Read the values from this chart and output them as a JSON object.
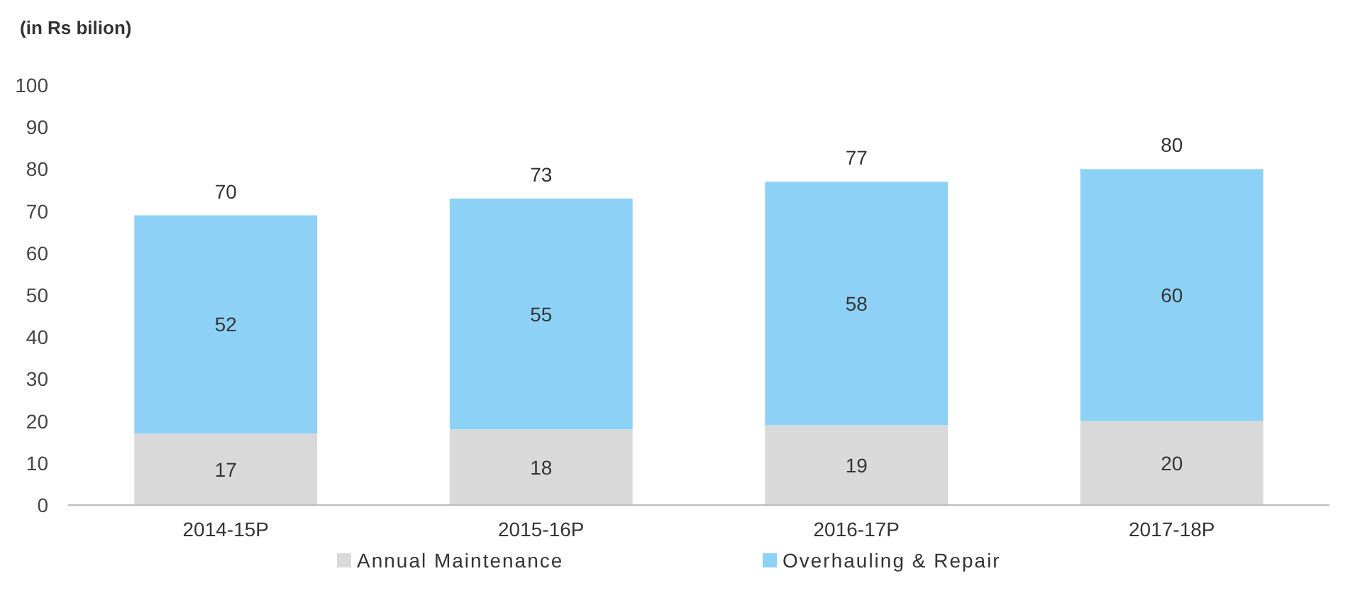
{
  "chart_data": {
    "type": "bar",
    "ylabel": "(in Rs bilion)",
    "stacked": true,
    "categories": [
      "2014-15P",
      "2015-16P",
      "2016-17P",
      "2017-18P"
    ],
    "series": [
      {
        "name": "Annual Maintenance",
        "color": "#d9d9d9",
        "values": [
          17,
          18,
          19,
          20
        ]
      },
      {
        "name": "Overhauling & Repair",
        "color": "#8ed1f7",
        "values": [
          52,
          55,
          58,
          60
        ]
      }
    ],
    "totals": [
      "70",
      "73",
      "77",
      "80"
    ],
    "data_labels": true,
    "ylim": [
      0,
      100
    ],
    "yticks": [
      0,
      10,
      20,
      30,
      40,
      50,
      60,
      70,
      80,
      90,
      100
    ],
    "grid": false,
    "legend": "bottom"
  }
}
